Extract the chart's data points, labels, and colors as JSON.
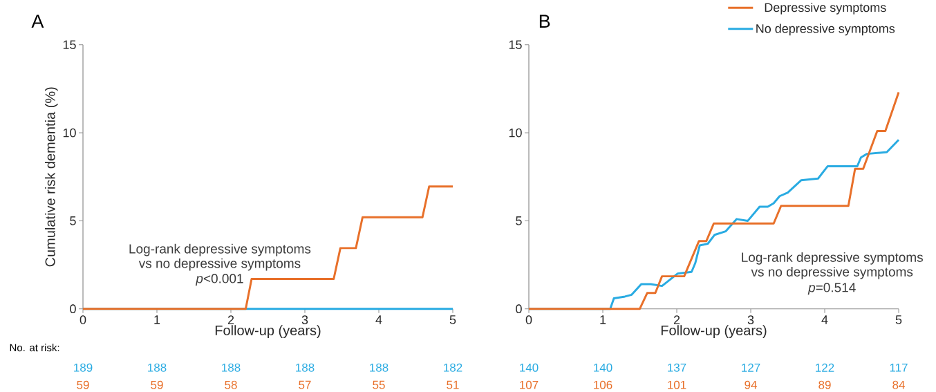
{
  "chart_data": [
    {
      "type": "line",
      "title": "A",
      "xlabel": "Follow-up (years)",
      "ylabel": "Cumulative risk dementia (%)",
      "xlim": [
        0,
        5
      ],
      "ylim": [
        0,
        15
      ],
      "xticks": [
        0,
        1,
        2,
        3,
        4,
        5
      ],
      "yticks": [
        0,
        5,
        10,
        15
      ],
      "grid": false,
      "legend": false,
      "series": [
        {
          "color": "#29abe2",
          "x": [
            0,
            2.2,
            5
          ],
          "values": [
            0,
            0,
            0
          ]
        },
        {
          "color": "#e8702a",
          "x": [
            0,
            2.2,
            2.28,
            3.39,
            3.48,
            3.69,
            3.78,
            4.59,
            4.68,
            5
          ],
          "values": [
            0,
            0,
            1.7,
            1.7,
            3.45,
            3.45,
            5.2,
            5.2,
            6.95,
            6.95
          ]
        }
      ],
      "annotations": [
        "Log-rank depressive symptoms",
        "vs no depressive symptoms",
        "*p*<0.001",
        "No. at risk:",
        "189",
        "188",
        "188",
        "188",
        "188",
        "182",
        "59",
        "59",
        "58",
        "57",
        "55",
        "51"
      ]
    },
    {
      "type": "line",
      "title": "B",
      "xlabel": "Follow-up (years)",
      "xlim": [
        0,
        5
      ],
      "ylim": [
        0,
        15
      ],
      "xticks": [
        0,
        1,
        2,
        3,
        4,
        5
      ],
      "yticks": [
        0,
        5,
        10,
        15
      ],
      "grid": false,
      "legend": "top right",
      "series": [
        {
          "name": "No depressive symptoms",
          "color": "#29abe2",
          "x": [
            0,
            1.1,
            1.15,
            1.3,
            1.39,
            1.52,
            1.65,
            1.8,
            2.01,
            2.2,
            2.25,
            2.31,
            2.42,
            2.51,
            2.66,
            2.81,
            2.96,
            3.12,
            3.23,
            3.31,
            3.39,
            3.5,
            3.68,
            3.91,
            4.04,
            4.19,
            4.44,
            4.49,
            4.57,
            4.84,
            5
          ],
          "values": [
            0,
            0,
            0.6,
            0.7,
            0.8,
            1.4,
            1.4,
            1.3,
            2.0,
            2.1,
            2.6,
            3.6,
            3.7,
            4.2,
            4.4,
            5.1,
            5.0,
            5.8,
            5.8,
            6.0,
            6.4,
            6.6,
            7.3,
            7.4,
            8.1,
            8.1,
            8.1,
            8.6,
            8.8,
            8.9,
            9.6
          ]
        },
        {
          "name": "Depressive symptoms",
          "color": "#e8702a",
          "x": [
            0,
            1.5,
            1.6,
            1.71,
            1.8,
            2.1,
            2.3,
            2.4,
            2.5,
            3.31,
            3.41,
            4.32,
            4.41,
            4.52,
            4.71,
            4.82,
            5
          ],
          "values": [
            0,
            0,
            0.9,
            0.9,
            1.85,
            1.85,
            3.85,
            3.85,
            4.85,
            4.85,
            5.85,
            5.85,
            7.95,
            7.95,
            10.1,
            10.1,
            12.3
          ]
        }
      ],
      "annotations": [
        "Log-rank depressive symptoms",
        "vs no depressive symptoms",
        "*p*=0.514",
        "140",
        "140",
        "137",
        "127",
        "122",
        "117",
        "107",
        "106",
        "101",
        "94",
        "89",
        "84"
      ]
    }
  ]
}
